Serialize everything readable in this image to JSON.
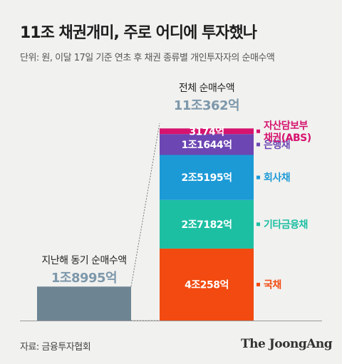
{
  "header": {
    "title": "11조 채권개미, 주로 어디에 투자했나",
    "subtitle": "단위: 원, 이달 17일 기준 연초 후 채권 종류별 개인투자자의 순매수액"
  },
  "footer": {
    "source": "자료: 금융투자협회",
    "brand": "The JoongAng"
  },
  "colors": {
    "background": "#f1f1ef",
    "prev_bar": "#6d8493",
    "total_value": "#7d98ab",
    "abs": "#d6136f",
    "bank": "#6c46b3",
    "corporate": "#1c9ad6",
    "other_finance": "#1dbfa3",
    "government": "#f24a10"
  },
  "chart_data": {
    "type": "bar",
    "unit": "원",
    "previous": {
      "label": "지난해 동기 순매수액",
      "value_text": "1조8995억",
      "value": 18995
    },
    "total": {
      "label": "전체 순매수액",
      "value_text": "11조362억",
      "value": 110362
    },
    "series": [
      {
        "name": "국채",
        "value": 40258,
        "value_text": "4조258억",
        "color": "#f24a10"
      },
      {
        "name": "기타금융채",
        "value": 27182,
        "value_text": "2조7182억",
        "color": "#1dbfa3"
      },
      {
        "name": "회사채",
        "value": 25195,
        "value_text": "2조5195억",
        "color": "#1c9ad6"
      },
      {
        "name": "은행채",
        "value": 11644,
        "value_text": "1조1644억",
        "color": "#6c46b3"
      },
      {
        "name": "자산담보부 채권(ABS)",
        "label_lines": [
          "자산담보부",
          "채권(ABS)"
        ],
        "value": 3174,
        "value_text": "3174억",
        "color": "#d6136f"
      }
    ]
  }
}
